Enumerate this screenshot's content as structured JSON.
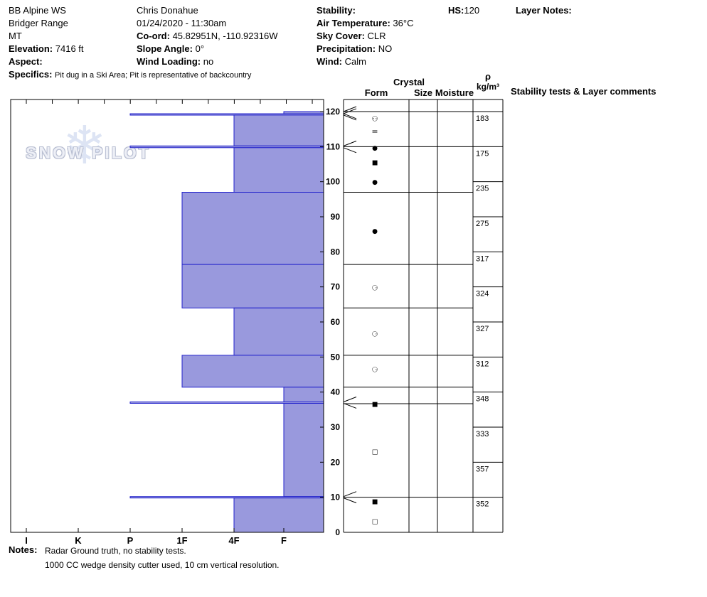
{
  "header": {
    "site": {
      "line1": "BB Alpine WS",
      "line2": "Bridger Range",
      "line3": "MT",
      "elevation_label": "Elevation:",
      "elevation": "7416 ft",
      "aspect_label": "Aspect:",
      "aspect": "",
      "specifics_label": "Specifics:",
      "specifics": "Pit dug in a Ski Area; Pit is representative of backcountry"
    },
    "observer": {
      "name": "Chris Donahue",
      "datetime": "01/24/2020 - 11:30am",
      "coord_label": "Co-ord:",
      "coord": "45.82951N, -110.92316W",
      "slope_angle_label": "Slope Angle:",
      "slope_angle": "0°",
      "wind_loading_label": "Wind Loading:",
      "wind_loading": "no"
    },
    "conditions": {
      "stability_label": "Stability:",
      "stability": "",
      "air_temp_label": "Air Temperature:",
      "air_temp": "36°C",
      "sky_label": "Sky Cover:",
      "sky": "CLR",
      "precip_label": "Precipitation:",
      "precip": "NO",
      "wind_label": "Wind:",
      "wind": "Calm"
    },
    "hs_label": "HS:",
    "hs": "120",
    "layer_notes_label": "Layer Notes:"
  },
  "columns": {
    "crystal": "Crystal",
    "form": "Form",
    "size": "Size",
    "moisture": "Moisture",
    "rho": "ρ",
    "rho_units": "kg/m³",
    "stability": "Stability tests & Layer comments"
  },
  "watermark": {
    "text": "SNOW PILOT",
    "snowflake": "❄"
  },
  "notes": {
    "label": "Notes:",
    "line1": "Radar Ground truth, no stability tests.",
    "line2": "1000 CC wedge density cutter used, 10 cm vertical resolution."
  },
  "colors": {
    "bar_fill": "#9999dd",
    "bar_stroke": "#2222cc",
    "grid": "#000000"
  },
  "chart_data": {
    "type": "bar",
    "subtype": "snow-hardness-profile",
    "title": "Snow pit hardness profile, HS 120 cm",
    "hs_cm": 120,
    "depth_axis": {
      "label_side": "right",
      "units": "cm",
      "ticks": [
        0,
        10,
        20,
        30,
        40,
        50,
        60,
        70,
        80,
        90,
        100,
        110,
        120
      ]
    },
    "hardness_axis": {
      "categories": [
        "I",
        "K",
        "P",
        "1F",
        "4F",
        "F"
      ],
      "note": "hand hardness, hardest (I) left to softest (F) right"
    },
    "layers": [
      {
        "top_cm": 120.0,
        "bottom_cm": 119.4,
        "hardness": "F"
      },
      {
        "top_cm": 119.4,
        "bottom_cm": 119.0,
        "hardness": "P"
      },
      {
        "top_cm": 119.0,
        "bottom_cm": 110.2,
        "hardness": "4F"
      },
      {
        "top_cm": 110.2,
        "bottom_cm": 109.7,
        "hardness": "P"
      },
      {
        "top_cm": 109.7,
        "bottom_cm": 97.0,
        "hardness": "4F"
      },
      {
        "top_cm": 97.0,
        "bottom_cm": 76.4,
        "hardness": "1F"
      },
      {
        "top_cm": 76.4,
        "bottom_cm": 64.0,
        "hardness": "1F"
      },
      {
        "top_cm": 64.0,
        "bottom_cm": 50.5,
        "hardness": "4F"
      },
      {
        "top_cm": 50.5,
        "bottom_cm": 41.4,
        "hardness": "1F"
      },
      {
        "top_cm": 41.4,
        "bottom_cm": 37.2,
        "hardness": "F"
      },
      {
        "top_cm": 37.2,
        "bottom_cm": 36.8,
        "hardness": "P"
      },
      {
        "top_cm": 36.8,
        "bottom_cm": 10.2,
        "hardness": "F"
      },
      {
        "top_cm": 10.2,
        "bottom_cm": 9.8,
        "hardness": "P"
      },
      {
        "top_cm": 9.8,
        "bottom_cm": 0.0,
        "hardness": "4F"
      }
    ],
    "form_grid_lines_cm": [
      120,
      110,
      97,
      76.4,
      64,
      50.5,
      41.4,
      36.7,
      10
    ],
    "crystals": [
      {
        "depth_cm": 118.0,
        "form": "rimed-new-snow",
        "glyph": "⚇",
        "size": 10
      },
      {
        "depth_cm": 114.3,
        "form": "ice-crust",
        "glyph": "=",
        "size": 11
      },
      {
        "depth_cm": 109.8,
        "form": "rounded-grains",
        "glyph": "●",
        "size": 9
      },
      {
        "depth_cm": 105.6,
        "form": "mixed-facets-rounds",
        "glyph": "■",
        "size": 9
      },
      {
        "depth_cm": 100.0,
        "form": "rounded-grains",
        "glyph": "●",
        "size": 9
      },
      {
        "depth_cm": 86.0,
        "form": "rounded-grains",
        "glyph": "●",
        "size": 9
      },
      {
        "depth_cm": 69.7,
        "form": "melt-forms",
        "glyph": "⚆",
        "size": 10
      },
      {
        "depth_cm": 56.6,
        "form": "melt-forms",
        "glyph": "⚆",
        "size": 10
      },
      {
        "depth_cm": 46.4,
        "form": "melt-forms",
        "glyph": "⚆",
        "size": 10
      },
      {
        "depth_cm": 36.7,
        "form": "mixed-facets-rounds",
        "glyph": "■",
        "size": 9
      },
      {
        "depth_cm": 23.1,
        "form": "faceted-crystals",
        "glyph": "□",
        "size": 9
      },
      {
        "depth_cm": 8.9,
        "form": "mixed-facets-rounds",
        "glyph": "■",
        "size": 9
      },
      {
        "depth_cm": 3.2,
        "form": "faceted-crystals",
        "glyph": "□",
        "size": 9
      }
    ],
    "density": [
      {
        "top_cm": 120,
        "kg_m3": 183
      },
      {
        "top_cm": 110,
        "kg_m3": 175
      },
      {
        "top_cm": 100,
        "kg_m3": 235
      },
      {
        "top_cm": 90,
        "kg_m3": 275
      },
      {
        "top_cm": 80,
        "kg_m3": 317
      },
      {
        "top_cm": 70,
        "kg_m3": 324
      },
      {
        "top_cm": 60,
        "kg_m3": 327
      },
      {
        "top_cm": 50,
        "kg_m3": 312
      },
      {
        "top_cm": 40,
        "kg_m3": 348
      },
      {
        "top_cm": 30,
        "kg_m3": 333
      },
      {
        "top_cm": 20,
        "kg_m3": 357
      },
      {
        "top_cm": 10,
        "kg_m3": 352
      }
    ]
  }
}
